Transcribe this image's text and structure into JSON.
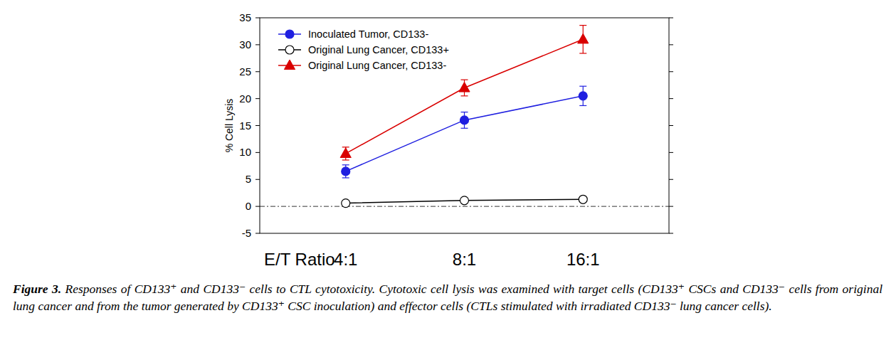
{
  "chart_data": {
    "type": "line",
    "x_label": "E/T Ratio",
    "y_label": "% Cell Lysis",
    "categories": [
      "4:1",
      "8:1",
      "16:1"
    ],
    "ylim": [
      -5,
      35
    ],
    "yticks": [
      -5,
      0,
      5,
      10,
      15,
      20,
      25,
      30,
      35
    ],
    "reference_line": 0,
    "legend": "upper left",
    "series": [
      {
        "name": "Inoculated Tumor, CD133-",
        "color": "#1f1fe0",
        "marker": "circle",
        "line_style": "solid",
        "values": [
          6.5,
          16.0,
          20.5
        ],
        "errors": [
          1.2,
          1.5,
          1.8
        ]
      },
      {
        "name": "Original Lung Cancer, CD133+",
        "color": "#000000",
        "marker": "open_circle",
        "line_style": "solid",
        "values": [
          0.6,
          1.1,
          1.3
        ],
        "errors": [
          0.2,
          0.2,
          0.2
        ]
      },
      {
        "name": "Original Lung Cancer, CD133-",
        "color": "#d90000",
        "marker": "triangle",
        "line_style": "solid",
        "values": [
          9.8,
          22.0,
          31.0
        ],
        "errors": [
          1.2,
          1.5,
          2.6
        ]
      }
    ],
    "caption": {
      "label": "Figure 3.",
      "text": "Responses of CD133⁺ and CD133⁻ cells to CTL cytotoxicity. Cytotoxic cell lysis was examined with target cells (CD133⁺ CSCs and CD133⁻ cells from original lung cancer and from the tumor generated by CD133⁺ CSC inoculation) and effector cells (CTLs stimulated with irradiated CD133⁻ lung cancer cells)."
    }
  }
}
